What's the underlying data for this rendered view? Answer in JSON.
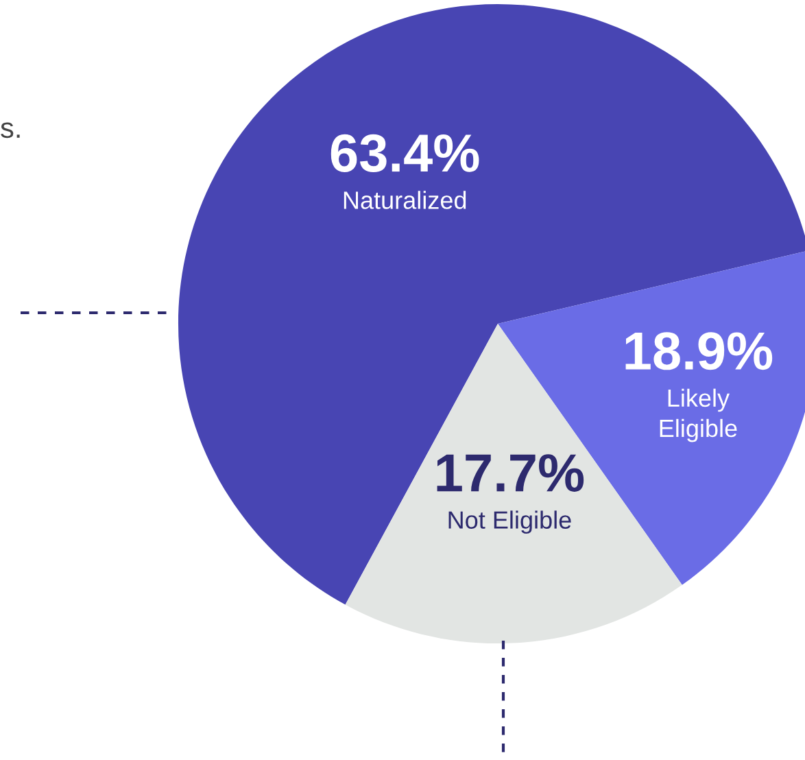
{
  "chart_data": {
    "type": "pie",
    "categories": [
      "Naturalized",
      "Likely\nEligible",
      "Not Eligible"
    ],
    "values": [
      63.4,
      18.9,
      17.7
    ],
    "colors": [
      "#4845b3",
      "#6a6ce6",
      "#e2e5e3"
    ],
    "value_labels": [
      "63.4%",
      "18.9%",
      "17.7%"
    ],
    "annotations": [
      "s."
    ]
  }
}
